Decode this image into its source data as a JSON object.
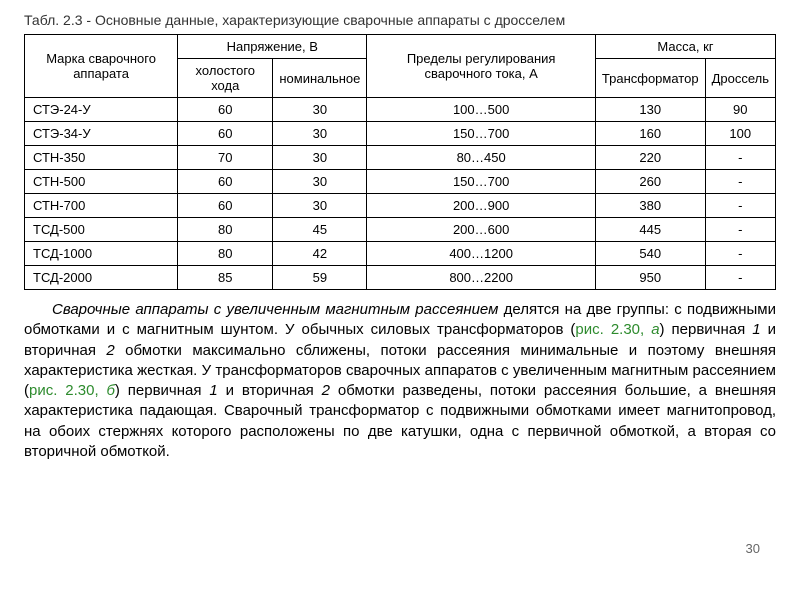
{
  "caption": "Табл. 2.3 - Основные данные, характеризующие сварочные аппараты с дросселем",
  "headers": {
    "brand": "Марка сварочного аппарата",
    "voltage_group": "Напряжение, В",
    "voltage_idle": "холостого хода",
    "voltage_nom": "номинальное",
    "current": "Пределы регулирования сварочного тока, А",
    "mass_group": "Масса, кг",
    "mass_trans": "Трансформатор",
    "mass_choke": "Дроссель"
  },
  "rows": [
    {
      "brand": "СТЭ-24-У",
      "idle": "60",
      "nom": "30",
      "current": "100…500",
      "trans": "130",
      "choke": "90"
    },
    {
      "brand": "СТЭ-34-У",
      "idle": "60",
      "nom": "30",
      "current": "150…700",
      "trans": "160",
      "choke": "100"
    },
    {
      "brand": "СТН-350",
      "idle": "70",
      "nom": "30",
      "current": "80…450",
      "trans": "220",
      "choke": "-"
    },
    {
      "brand": "СТН-500",
      "idle": "60",
      "nom": "30",
      "current": "150…700",
      "trans": "260",
      "choke": "-"
    },
    {
      "brand": "СТН-700",
      "idle": "60",
      "nom": "30",
      "current": "200…900",
      "trans": "380",
      "choke": "-"
    },
    {
      "brand": "ТСД-500",
      "idle": "80",
      "nom": "45",
      "current": "200…600",
      "trans": "445",
      "choke": "-"
    },
    {
      "brand": "ТСД-1000",
      "idle": "80",
      "nom": "42",
      "current": "400…1200",
      "trans": "540",
      "choke": "-"
    },
    {
      "brand": "ТСД-2000",
      "idle": "85",
      "nom": "59",
      "current": "800…2200",
      "trans": "950",
      "choke": "-"
    }
  ],
  "para": {
    "s1": "Сварочные аппараты с увеличенным магнитным рассеянием",
    "s2": " делятся на две группы: с подвижными обмотками и с магнитным шунтом. У обычных силовых трансформаторов (",
    "l1": "рис. 2.30, ",
    "l1i": "а",
    "s3": ") первичная ",
    "n1": "1",
    "s4": " и вторичная ",
    "n2": "2",
    "s5": " обмотки максимально сближены, потоки рассеяния минимальные и поэтому внешняя характеристика жесткая. У трансформаторов сварочных аппаратов с увеличенным магнитным рассеянием (",
    "l2": "рис. 2.30, ",
    "l2i": "б",
    "s6": ") первичная ",
    "n3": "1",
    "s7": " и вторичная ",
    "n4": "2",
    "s8": " обмотки разведены, потоки рассеяния большие, а внешняя характеристика падающая. Сварочный трансформатор с подвижными обмотками имеет магнитопровод, на обоих стержнях которого расположены по две катушки, одна с первичной обмоткой, а вторая со вторичной обмоткой."
  },
  "page_number": "30"
}
